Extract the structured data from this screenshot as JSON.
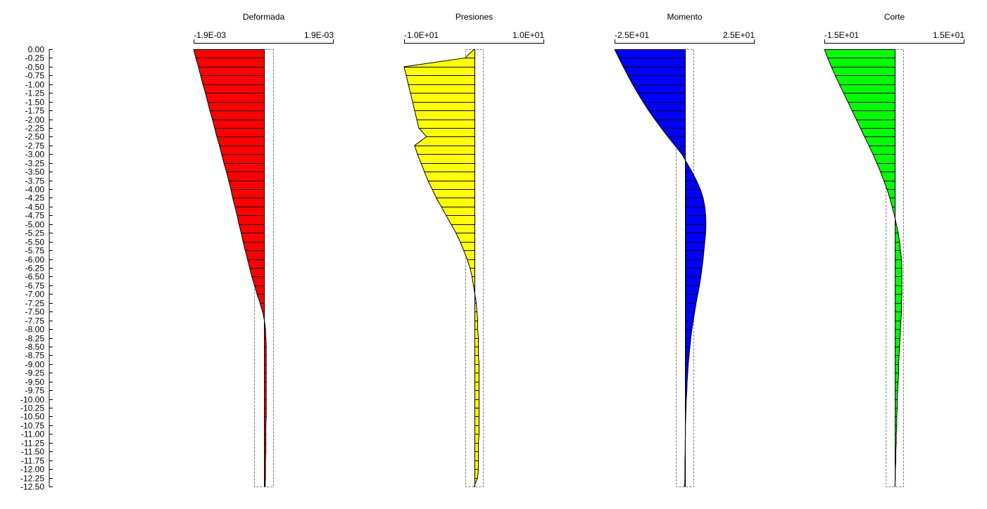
{
  "chart_data": {
    "type": "bar",
    "orientation": "horizontal",
    "depth_ticks": [
      "0.00",
      "-0.25",
      "-0.50",
      "-0.75",
      "-1.00",
      "-1.25",
      "-1.50",
      "-1.75",
      "-2.00",
      "-2.25",
      "-2.50",
      "-2.75",
      "-3.00",
      "-3.25",
      "-3.50",
      "-3.75",
      "-4.00",
      "-4.25",
      "-4.50",
      "-4.75",
      "-5.00",
      "-5.25",
      "-5.50",
      "-5.75",
      "-6.00",
      "-6.25",
      "-6.50",
      "-6.75",
      "-7.00",
      "-7.25",
      "-7.50",
      "-7.75",
      "-8.00",
      "-8.25",
      "-8.50",
      "-8.75",
      "-9.00",
      "-9.25",
      "-9.50",
      "-9.75",
      "-10.00",
      "-10.25",
      "-10.50",
      "-10.75",
      "-11.00",
      "-11.25",
      "-11.50",
      "-11.75",
      "-12.00",
      "-12.25",
      "-12.50"
    ],
    "depth": [
      0,
      -0.25,
      -0.5,
      -0.75,
      -1,
      -1.25,
      -1.5,
      -1.75,
      -2,
      -2.25,
      -2.5,
      -2.75,
      -3,
      -3.25,
      -3.5,
      -3.75,
      -4,
      -4.25,
      -4.5,
      -4.75,
      -5,
      -5.25,
      -5.5,
      -5.75,
      -6,
      -6.25,
      -6.5,
      -6.75,
      -7,
      -7.25,
      -7.5,
      -7.75,
      -8,
      -8.25,
      -8.5,
      -8.75,
      -9,
      -9.25,
      -9.5,
      -9.75,
      -10,
      -10.25,
      -10.5,
      -10.75,
      -11,
      -11.25,
      -11.5,
      -11.75,
      -12,
      -12.25,
      -12.5
    ],
    "ylim": [
      -12.5,
      0
    ],
    "panels": [
      {
        "title": "Deformada",
        "min_label": "-1.9E-03",
        "max_label": "1.9E-03",
        "xlim": [
          -0.0019,
          0.0019
        ],
        "band": [
          -0.00025,
          0.00025
        ],
        "color": "#ff0000",
        "values": [
          -0.0019,
          -0.00184,
          -0.00177,
          -0.00171,
          -0.00165,
          -0.00158,
          -0.00152,
          -0.00146,
          -0.00139,
          -0.00133,
          -0.00127,
          -0.0012,
          -0.00114,
          -0.00108,
          -0.00101,
          -0.00095,
          -0.00089,
          -0.00084,
          -0.00078,
          -0.00072,
          -0.00067,
          -0.00061,
          -0.00056,
          -0.0005,
          -0.00044,
          -0.00038,
          -0.00032,
          -0.00025,
          -0.00018,
          -0.0001,
          -3e-05,
          2e-05,
          5e-05,
          6e-05,
          7e-05,
          7e-05,
          7e-05,
          7e-05,
          7e-05,
          7e-05,
          7e-05,
          7e-05,
          7e-05,
          6e-05,
          6e-05,
          6e-05,
          6e-05,
          5e-05,
          5e-05,
          5e-05,
          4e-05
        ]
      },
      {
        "title": "Presiones",
        "min_label": "-1.0E+01",
        "max_label": "1.0E+01",
        "xlim": [
          -10,
          10
        ],
        "band": [
          -1.3,
          1.3
        ],
        "color": "#ffff00",
        "values": [
          0,
          -1.3,
          -10,
          -9.7,
          -9.4,
          -9.1,
          -8.8,
          -8.5,
          -8.2,
          -7.9,
          -6.8,
          -8.5,
          -8.1,
          -7.6,
          -7.1,
          -6.6,
          -6,
          -5.4,
          -4.7,
          -4,
          -3.3,
          -2.6,
          -2,
          -1.5,
          -1,
          -0.6,
          -0.3,
          -0.1,
          0.1,
          0.3,
          0.4,
          0.5,
          0.5,
          0.6,
          0.6,
          0.6,
          0.7,
          0.7,
          0.7,
          0.7,
          0.7,
          0.7,
          0.7,
          0.7,
          0.7,
          0.6,
          0.6,
          0.6,
          0.6,
          0.5,
          0
        ]
      },
      {
        "title": "Momento",
        "min_label": "-2.5E+01",
        "max_label": "2.5E+01",
        "xlim": [
          -25,
          25
        ],
        "band": [
          -3.2,
          3.2
        ],
        "color": "#0000ff",
        "values": [
          -25,
          -23.5,
          -21.9,
          -20.3,
          -18.6,
          -16.8,
          -14.9,
          -12.9,
          -10.7,
          -8.4,
          -6,
          -3.5,
          -1,
          0.8,
          2.6,
          4.2,
          5.6,
          6.6,
          7.2,
          7.5,
          7.6,
          7.5,
          7.2,
          6.9,
          6.6,
          6.2,
          5.8,
          5.3,
          4.7,
          4.1,
          3.6,
          3.1,
          2.6,
          2.2,
          1.9,
          1.6,
          1.3,
          1.1,
          0.9,
          0.8,
          0.6,
          0.5,
          0.4,
          0.3,
          0.3,
          0.2,
          0.2,
          0.1,
          0.1,
          0.1,
          0
        ]
      },
      {
        "title": "Corte",
        "min_label": "-1.5E+01",
        "max_label": "1.5E+01",
        "xlim": [
          -15,
          15
        ],
        "band": [
          -1.9,
          1.9
        ],
        "color": "#00ff00",
        "values": [
          -15,
          -14.3,
          -13.5,
          -12.7,
          -11.8,
          -10.9,
          -10,
          -9.1,
          -8.2,
          -7.3,
          -6.4,
          -5.5,
          -4.6,
          -3.8,
          -3,
          -2.3,
          -1.6,
          -1,
          -0.5,
          0,
          0.4,
          0.8,
          1.1,
          1.3,
          1.5,
          1.6,
          1.6,
          1.6,
          1.6,
          1.5,
          1.5,
          1.4,
          1.3,
          1.2,
          1.1,
          1,
          0.9,
          0.9,
          0.8,
          0.7,
          0.6,
          0.6,
          0.5,
          0.5,
          0.4,
          0.4,
          0.3,
          0.3,
          0.2,
          0.2,
          0.1
        ]
      }
    ]
  }
}
